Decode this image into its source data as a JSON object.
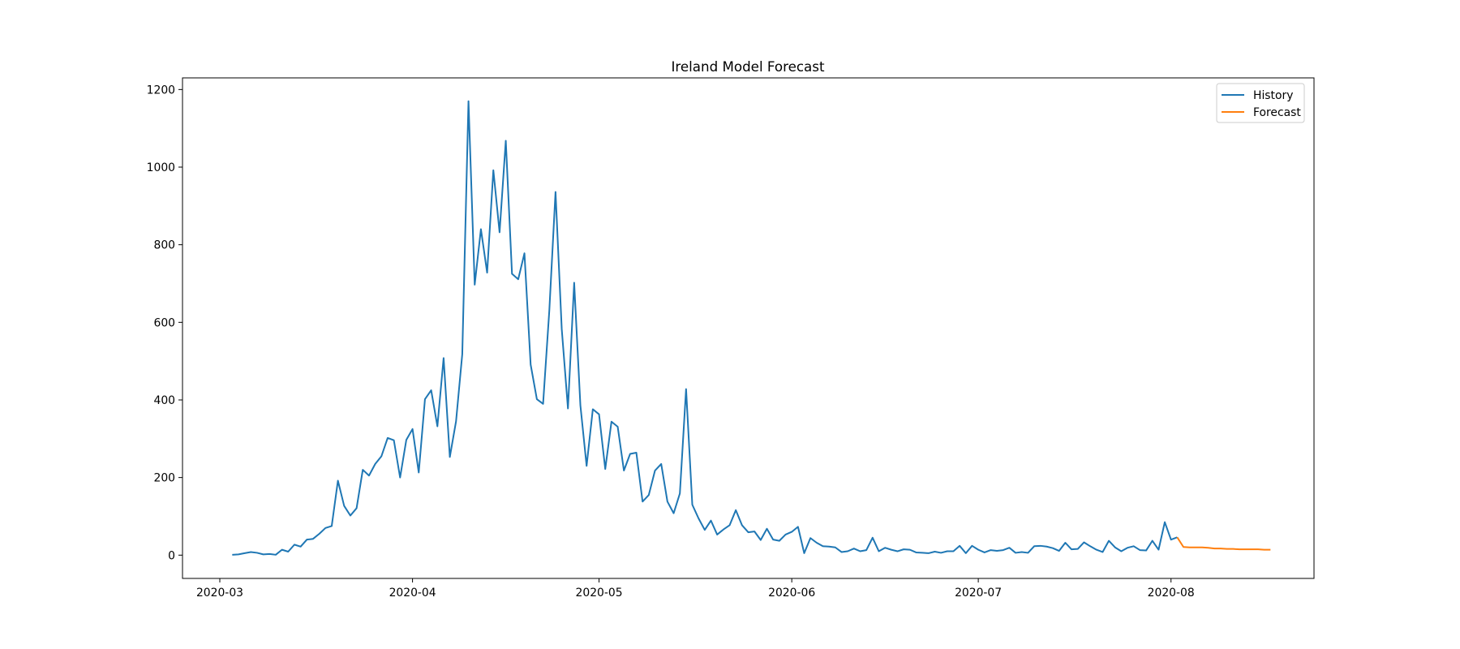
{
  "chart_data": {
    "type": "line",
    "title": "Ireland Model Forecast",
    "xlabel": "",
    "ylabel": "",
    "x_axis": {
      "type": "date",
      "range": [
        "2020-02-24",
        "2020-08-24"
      ],
      "ticks": [
        "2020-03",
        "2020-04",
        "2020-05",
        "2020-06",
        "2020-07",
        "2020-08"
      ]
    },
    "y_axis": {
      "range": [
        -60,
        1230
      ],
      "ticks": [
        "0",
        "200",
        "400",
        "600",
        "800",
        "1000",
        "1200"
      ]
    },
    "grid": false,
    "legend": {
      "placement": "top-right"
    },
    "series": [
      {
        "name": "History",
        "color": "#1f77b4",
        "start_date": "2020-03-03",
        "values": [
          1,
          2,
          5,
          8,
          6,
          2,
          3,
          1,
          14,
          9,
          27,
          22,
          40,
          42,
          55,
          70,
          75,
          192,
          127,
          102,
          121,
          220,
          205,
          235,
          255,
          302,
          296,
          200,
          297,
          325,
          213,
          402,
          425,
          332,
          508,
          253,
          345,
          518,
          1170,
          697,
          840,
          728,
          992,
          832,
          1068,
          725,
          711,
          778,
          491,
          402,
          390,
          630,
          936,
          583,
          378,
          702,
          386,
          230,
          376,
          363,
          222,
          344,
          331,
          218,
          261,
          264,
          138,
          155,
          218,
          235,
          138,
          108,
          159,
          428,
          130,
          95,
          65,
          89,
          53,
          66,
          77,
          116,
          77,
          59,
          61,
          39,
          68,
          40,
          37,
          53,
          60,
          73,
          5,
          44,
          32,
          23,
          22,
          20,
          8,
          10,
          17,
          10,
          13,
          45,
          10,
          19,
          14,
          10,
          15,
          14,
          7,
          6,
          5,
          9,
          6,
          10,
          10,
          24,
          5,
          24,
          14,
          7,
          13,
          11,
          13,
          19,
          6,
          8,
          6,
          23,
          24,
          22,
          18,
          11,
          32,
          15,
          16,
          33,
          23,
          14,
          8,
          37,
          20,
          10,
          19,
          23,
          13,
          12,
          37,
          14,
          85,
          40,
          46
        ]
      },
      {
        "name": "Forecast",
        "color": "#ff7f0e",
        "start_date": "2020-08-02",
        "values": [
          46,
          21,
          20,
          20,
          20,
          19,
          17,
          17,
          16,
          16,
          15,
          15,
          15,
          15,
          14,
          14
        ]
      }
    ]
  }
}
